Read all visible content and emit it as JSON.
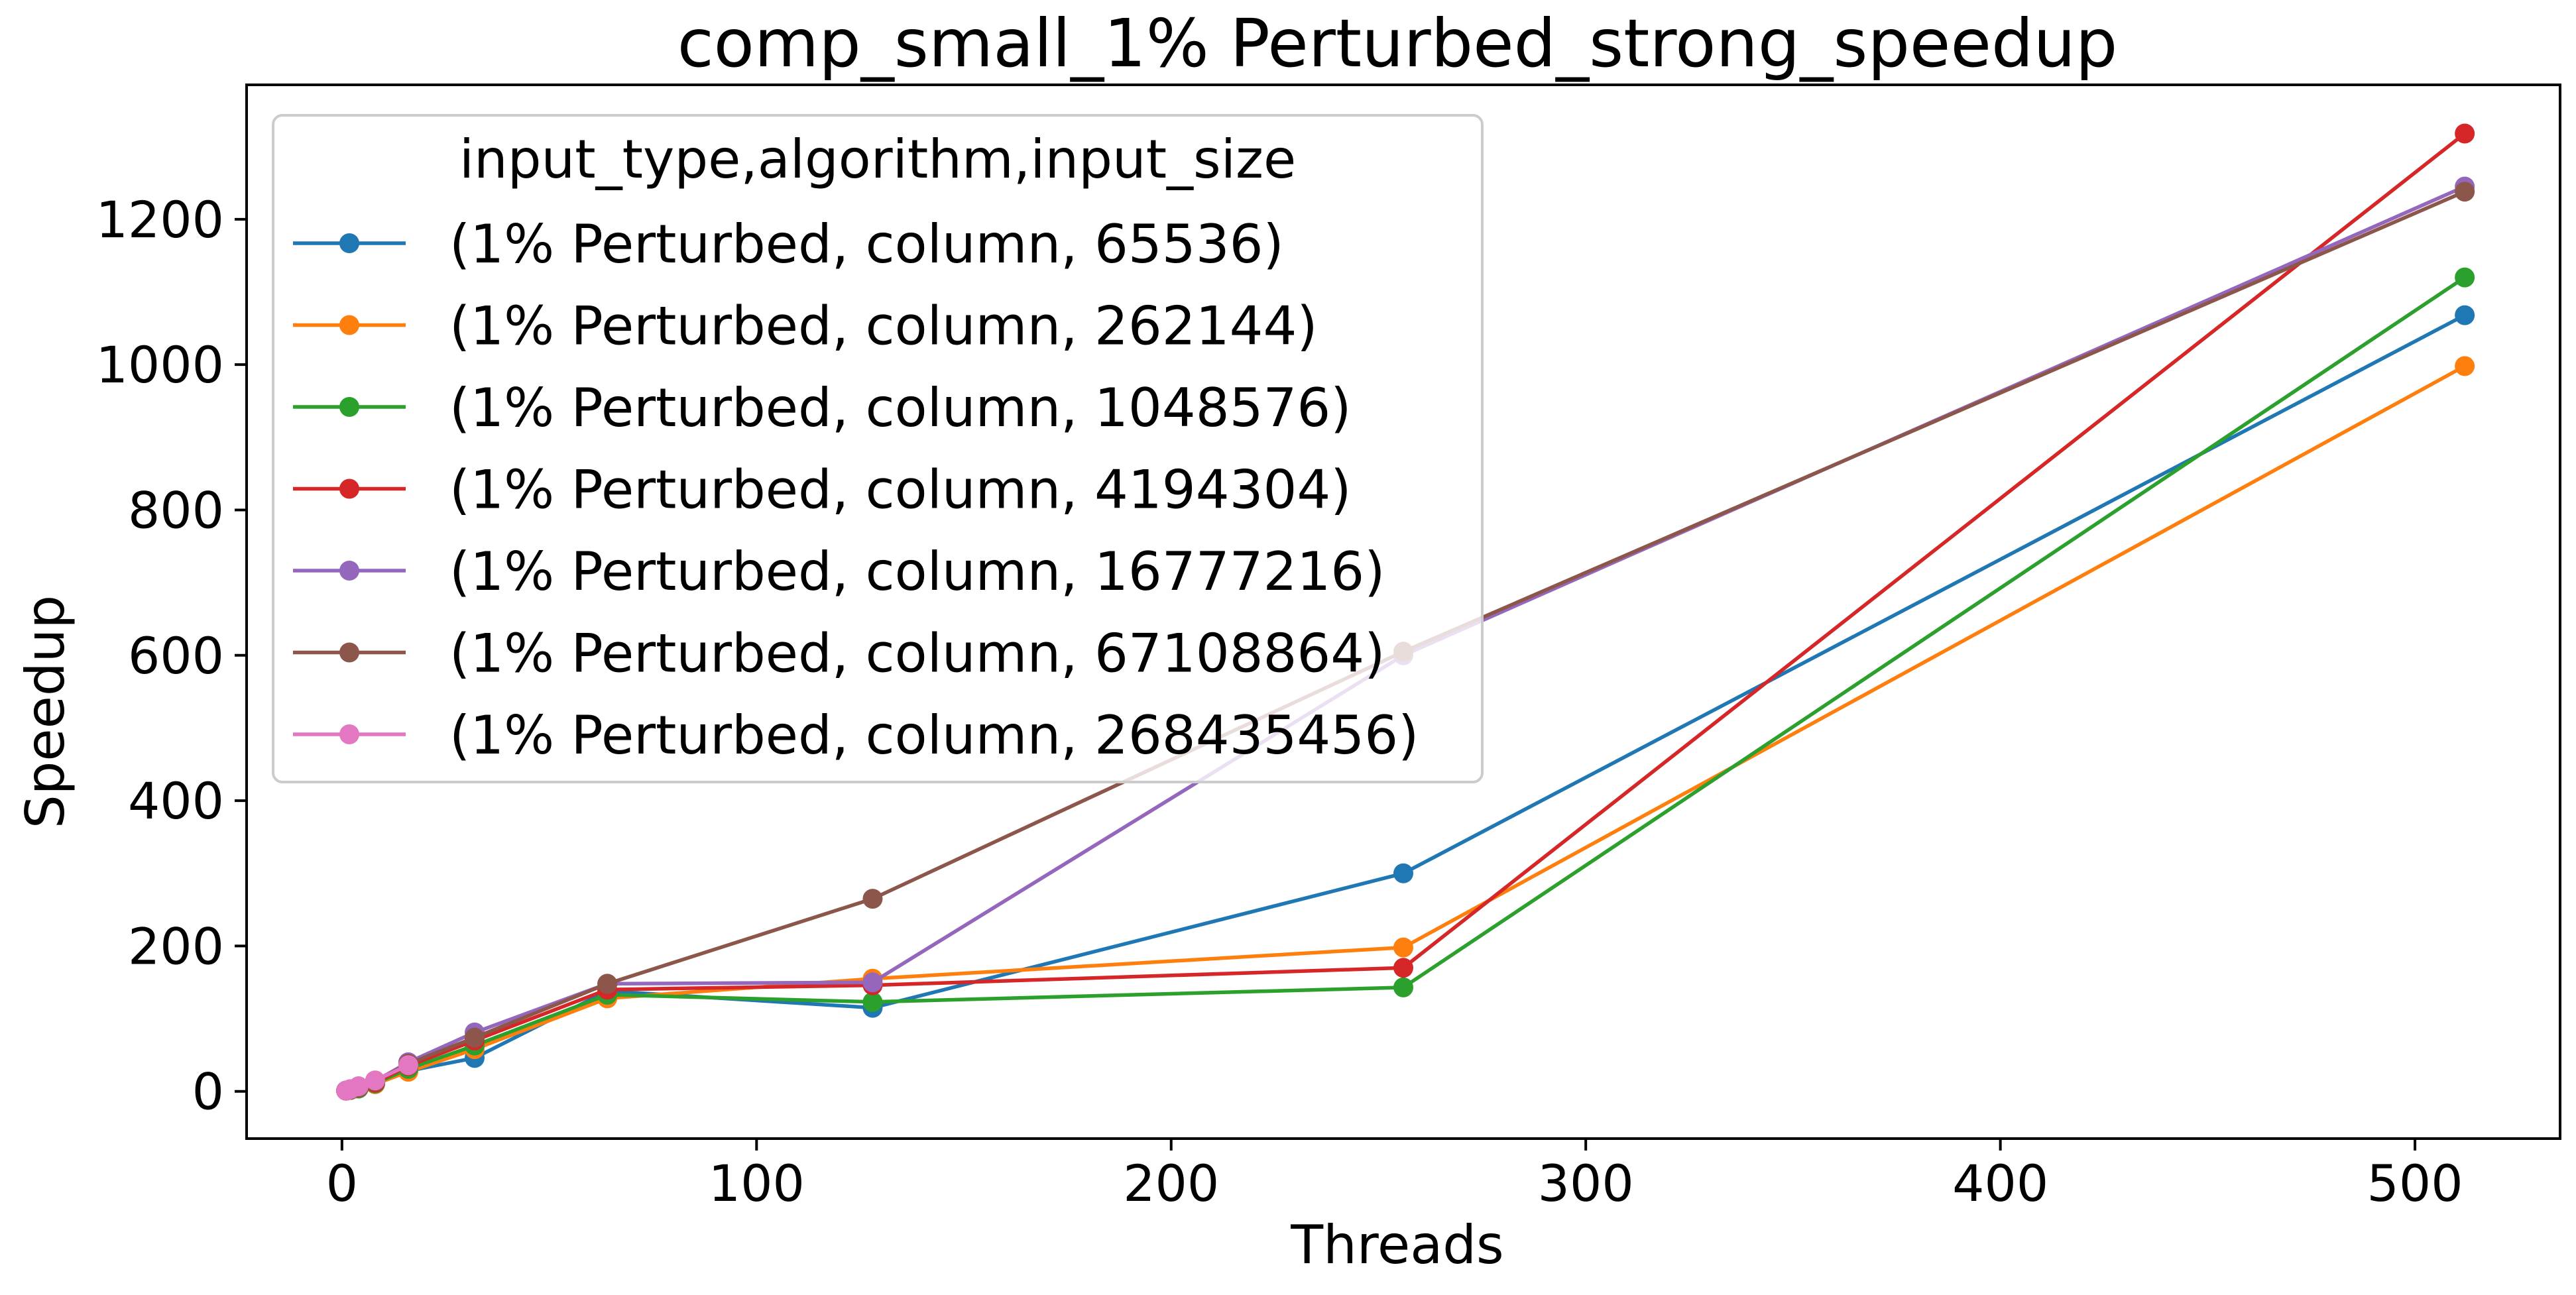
{
  "chart_data": {
    "type": "line",
    "title": "comp_small_1% Perturbed_strong_speedup",
    "xlabel": "Threads",
    "ylabel": "Speedup",
    "xlim": [
      -23,
      535
    ],
    "ylim": [
      -65,
      1385
    ],
    "xticks": [
      0,
      100,
      200,
      300,
      400,
      500
    ],
    "yticks": [
      0,
      200,
      400,
      600,
      800,
      1000,
      1200
    ],
    "grid": false,
    "legend": {
      "title": "input_type,algorithm,input_size",
      "placement": "upper-left"
    },
    "series": [
      {
        "name": "(1% Perturbed, column, 65536)",
        "color": "#1f77b4",
        "x": [
          1,
          2,
          4,
          8,
          16,
          32,
          64,
          128,
          256,
          512
        ],
        "y": [
          1,
          2,
          4,
          10,
          28,
          46,
          138,
          115,
          300,
          1068
        ]
      },
      {
        "name": "(1% Perturbed, column, 262144)",
        "color": "#ff7f0e",
        "x": [
          1,
          2,
          4,
          8,
          16,
          32,
          64,
          128,
          256,
          512
        ],
        "y": [
          1,
          2,
          4,
          10,
          27,
          58,
          128,
          155,
          198,
          998
        ]
      },
      {
        "name": "(1% Perturbed, column, 1048576)",
        "color": "#2ca02c",
        "x": [
          1,
          2,
          4,
          8,
          16,
          32,
          64,
          128,
          256,
          512
        ],
        "y": [
          1,
          2,
          4,
          11,
          31,
          63,
          133,
          123,
          143,
          1120
        ]
      },
      {
        "name": "(1% Perturbed, column, 4194304)",
        "color": "#d62728",
        "x": [
          1,
          2,
          4,
          8,
          16,
          32,
          64,
          128,
          256,
          512
        ],
        "y": [
          1,
          2,
          5,
          12,
          35,
          70,
          140,
          146,
          170,
          1318
        ]
      },
      {
        "name": "(1% Perturbed, column, 16777216)",
        "color": "#9467bd",
        "x": [
          1,
          2,
          4,
          8,
          16,
          32,
          64,
          128,
          256,
          512
        ],
        "y": [
          1,
          2,
          5,
          14,
          40,
          81,
          148,
          150,
          600,
          1245
        ]
      },
      {
        "name": "(1% Perturbed, column, 67108864)",
        "color": "#8c564b",
        "x": [
          1,
          2,
          4,
          8,
          16,
          32,
          64,
          128,
          256,
          512
        ],
        "y": [
          1,
          2,
          5,
          14,
          38,
          74,
          148,
          265,
          605,
          1238
        ]
      },
      {
        "name": "(1% Perturbed, column, 268435456)",
        "color": "#e377c2",
        "x": [
          1,
          2,
          4,
          8,
          16
        ],
        "y": [
          1,
          3,
          7,
          15,
          36
        ]
      }
    ]
  }
}
